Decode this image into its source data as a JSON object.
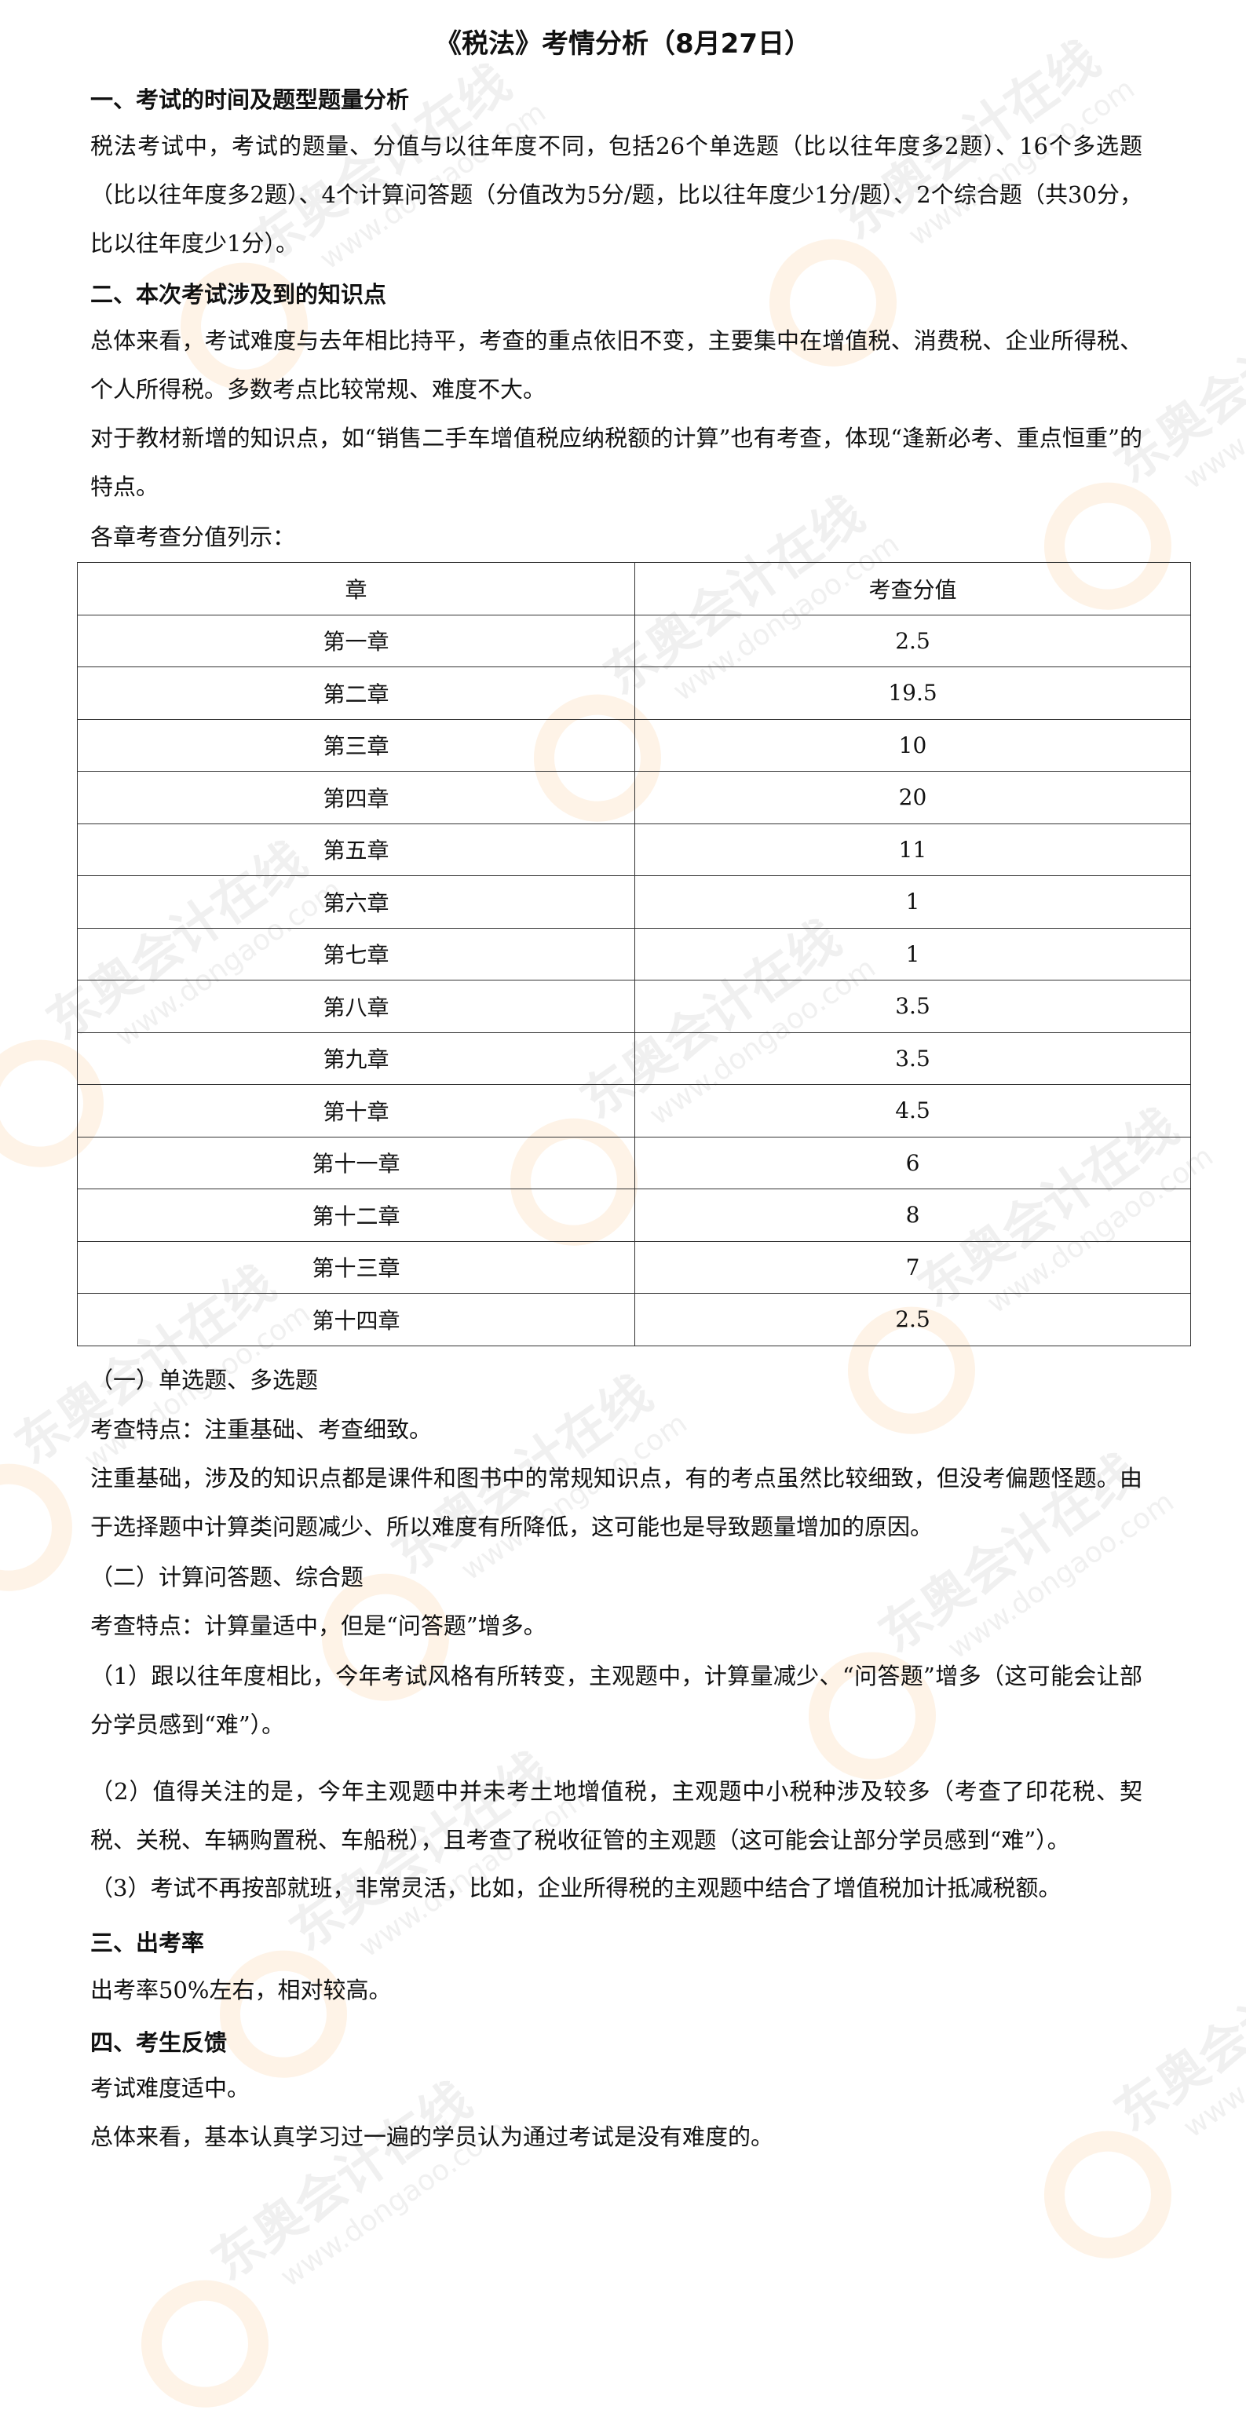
{
  "title": "《税法》考情分析（8月27日）",
  "watermark": {
    "brand": "东奥会计在线",
    "url": "www.dongaoo.com"
  },
  "section1": {
    "heading": "一、考试的时间及题型题量分析",
    "text": "税法考试中，考试的题量、分值与以往年度不同，包括26个单选题（比以往年度多2题）、16个多选题（比以往年度多2题）、4个计算问答题（分值改为5分/题，比以往年度少1分/题）、2个综合题（共30分，比以往年度少1分）。"
  },
  "section2": {
    "heading": "二、本次考试涉及到的知识点",
    "p1": "总体来看，考试难度与去年相比持平，考查的重点依旧不变，主要集中在增值税、消费税、企业所得税、个人所得税。多数考点比较常规、难度不大。",
    "p2": "对于教材新增的知识点，如“销售二手车增值税应纳税额的计算”也有考查，体现“逢新必考、重点恒重”的特点。",
    "table_intro": "各章考查分值列示：",
    "table": {
      "headers": [
        "章",
        "考查分值"
      ],
      "rows": [
        [
          "第一章",
          "2.5"
        ],
        [
          "第二章",
          "19.5"
        ],
        [
          "第三章",
          "10"
        ],
        [
          "第四章",
          "20"
        ],
        [
          "第五章",
          "11"
        ],
        [
          "第六章",
          "1"
        ],
        [
          "第七章",
          "1"
        ],
        [
          "第八章",
          "3.5"
        ],
        [
          "第九章",
          "3.5"
        ],
        [
          "第十章",
          "4.5"
        ],
        [
          "第十一章",
          "6"
        ],
        [
          "第十二章",
          "8"
        ],
        [
          "第十三章",
          "7"
        ],
        [
          "第十四章",
          "2.5"
        ]
      ]
    },
    "sub1": {
      "heading": "（一）单选题、多选题",
      "feature": "考查特点：注重基础、考查细致。",
      "text": "注重基础，涉及的知识点都是课件和图书中的常规知识点，有的考点虽然比较细致，但没考偏题怪题。由于选择题中计算类问题减少、所以难度有所降低，这可能也是导致题量增加的原因。"
    },
    "sub2": {
      "heading": "（二）计算问答题、综合题",
      "feature": "考查特点：计算量适中，但是“问答题”增多。",
      "item1": "（1）跟以往年度相比，今年考试风格有所转变，主观题中，计算量减少、“问答题”增多（这可能会让部分学员感到“难”）。",
      "item2": "（2）值得关注的是，今年主观题中并未考土地增值税，主观题中小税种涉及较多（考查了印花税、契税、关税、车辆购置税、车船税），且考查了税收征管的主观题（这可能会让部分学员感到“难”）。",
      "item3": "（3）考试不再按部就班，非常灵活，比如，企业所得税的主观题中结合了增值税加计抵减税额。"
    }
  },
  "section3": {
    "heading": "三、出考率",
    "text": "出考率50%左右，相对较高。"
  },
  "section4": {
    "heading": "四、考生反馈",
    "p1": "考试难度适中。",
    "p2": "总体来看，基本认真学习过一遍的学员认为通过考试是没有难度的。"
  }
}
